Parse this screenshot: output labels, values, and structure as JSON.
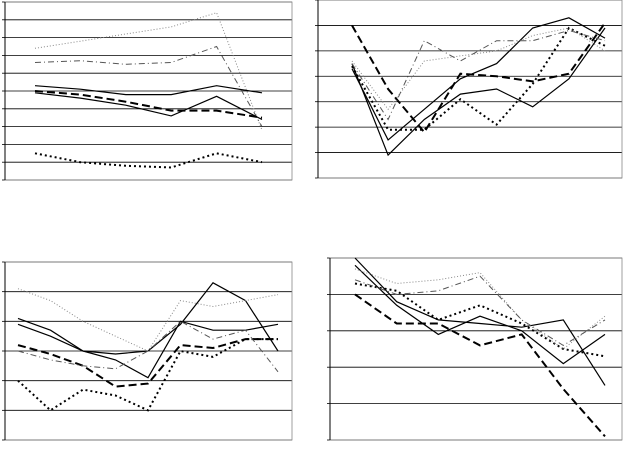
{
  "chart_data": [
    {
      "type": "line",
      "categories": [
        null,
        null,
        null,
        null,
        null,
        null
      ],
      "ylim": [
        0,
        10
      ],
      "yticks": [
        0,
        1,
        2,
        3,
        4,
        5,
        6,
        7,
        8,
        9,
        10
      ],
      "grid": true,
      "series": [
        {
          "color": "#888888",
          "style": "dotted",
          "values": [
            7.4,
            7.8,
            8.2,
            8.6,
            9.4,
            2.8
          ]
        },
        {
          "color": "#555555",
          "style": "dashdot",
          "values": [
            6.6,
            6.7,
            6.5,
            6.6,
            7.5,
            3.0
          ]
        },
        {
          "color": "#000000",
          "style": "solid",
          "values": [
            5.3,
            5.1,
            4.8,
            4.8,
            5.3,
            4.9
          ]
        },
        {
          "color": "#000000",
          "style": "solid",
          "values": [
            4.9,
            4.6,
            4.2,
            3.6,
            4.7,
            3.4
          ]
        },
        {
          "color": "#000000",
          "style": "dashed",
          "values": [
            5.0,
            4.8,
            4.4,
            3.9,
            3.9,
            3.5
          ]
        },
        {
          "color": "#000000",
          "style": "dottedbold",
          "values": [
            1.5,
            1.0,
            0.8,
            0.7,
            1.5,
            1.0
          ]
        }
      ]
    },
    {
      "type": "line",
      "categories": [
        null,
        null,
        null,
        null,
        null,
        null,
        null,
        null
      ],
      "ylim": [
        0,
        7
      ],
      "yticks": [
        0,
        1,
        2,
        3,
        4,
        5,
        6,
        7
      ],
      "grid": true,
      "series": [
        {
          "color": "#000000",
          "style": "solid",
          "values": [
            4.5,
            0.9,
            2.3,
            3.3,
            3.5,
            2.8,
            3.9,
            5.9
          ]
        },
        {
          "color": "#000000",
          "style": "solid",
          "values": [
            4.3,
            1.5,
            2.7,
            3.9,
            4.5,
            5.9,
            6.3,
            5.5
          ]
        },
        {
          "color": "#000000",
          "style": "dashed",
          "values": [
            6.0,
            3.5,
            1.8,
            4.1,
            4.0,
            3.8,
            4.1,
            6.1
          ]
        },
        {
          "color": "#000000",
          "style": "dottedbold",
          "values": [
            4.4,
            1.9,
            1.9,
            3.1,
            2.1,
            3.7,
            5.9,
            5.2
          ]
        },
        {
          "color": "#888888",
          "style": "dotted",
          "values": [
            4.6,
            2.7,
            4.6,
            4.8,
            5.0,
            5.6,
            5.9,
            5.0
          ]
        },
        {
          "color": "#555555",
          "style": "dashdot",
          "values": [
            4.5,
            2.3,
            5.4,
            4.6,
            5.4,
            5.4,
            5.8,
            5.4
          ]
        }
      ]
    },
    {
      "type": "line",
      "categories": [
        null,
        null,
        null,
        null,
        null,
        null,
        null,
        null,
        null
      ],
      "ylim": [
        0,
        6
      ],
      "yticks": [
        0,
        1,
        2,
        3,
        4,
        5,
        6
      ],
      "grid": true,
      "series": [
        {
          "color": "#000000",
          "style": "solid",
          "values": [
            4.1,
            3.7,
            3.0,
            2.9,
            3.0,
            3.9,
            5.3,
            4.7,
            3.0
          ]
        },
        {
          "color": "#000000",
          "style": "solid",
          "values": [
            3.9,
            3.5,
            3.0,
            2.7,
            2.1,
            4.0,
            3.7,
            3.7,
            3.9
          ]
        },
        {
          "color": "#888888",
          "style": "dotted",
          "values": [
            5.1,
            4.7,
            4.0,
            3.5,
            3.0,
            4.7,
            4.5,
            4.7,
            4.9
          ]
        },
        {
          "color": "#000000",
          "style": "dashed",
          "values": [
            3.2,
            2.9,
            2.5,
            1.8,
            1.9,
            3.2,
            3.1,
            3.4,
            3.4
          ]
        },
        {
          "color": "#000000",
          "style": "dottedbold",
          "values": [
            2.0,
            1.0,
            1.7,
            1.5,
            1.0,
            3.0,
            2.8,
            3.4,
            3.4
          ]
        },
        {
          "color": "#555555",
          "style": "dashdot",
          "values": [
            3.0,
            2.7,
            2.5,
            2.4,
            3.0,
            4.0,
            3.4,
            3.7,
            2.3
          ]
        }
      ]
    },
    {
      "type": "line",
      "categories": [
        null,
        null,
        null,
        null,
        null,
        null,
        null
      ],
      "ylim": [
        0,
        5
      ],
      "yticks": [
        0,
        1,
        2,
        3,
        4,
        5
      ],
      "grid": true,
      "series": [
        {
          "color": "#000000",
          "style": "solid",
          "values": [
            5.0,
            3.8,
            3.3,
            3.2,
            3.1,
            3.3,
            1.5
          ]
        },
        {
          "color": "#000000",
          "style": "solid",
          "values": [
            4.8,
            3.7,
            2.9,
            3.4,
            3.0,
            2.1,
            2.9
          ]
        },
        {
          "color": "#000000",
          "style": "dashed",
          "values": [
            4.0,
            3.2,
            3.2,
            2.6,
            2.9,
            1.4,
            0.1
          ]
        },
        {
          "color": "#000000",
          "style": "dottedbold",
          "values": [
            4.3,
            4.1,
            3.3,
            3.7,
            3.2,
            2.5,
            2.3
          ]
        },
        {
          "color": "#888888",
          "style": "dotted",
          "values": [
            4.7,
            4.3,
            4.4,
            4.6,
            3.3,
            2.5,
            3.4
          ]
        },
        {
          "color": "#555555",
          "style": "dashdot",
          "values": [
            4.4,
            4.0,
            4.1,
            4.5,
            3.3,
            2.6,
            3.3
          ]
        }
      ]
    }
  ]
}
